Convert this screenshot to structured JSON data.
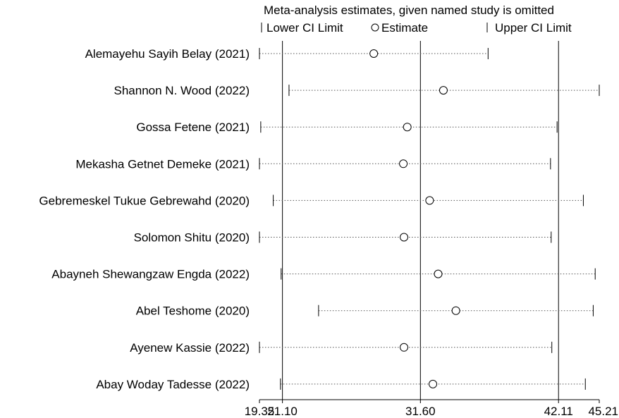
{
  "chart_data": {
    "type": "scatter",
    "title": "Meta-analysis estimates, given named study is omitted",
    "legend": {
      "placement": "top",
      "entries": [
        {
          "symbol": "|",
          "label": "Lower CI Limit"
        },
        {
          "symbol": "○",
          "label": "Estimate"
        },
        {
          "symbol": "|",
          "label": "Upper CI Limit"
        }
      ]
    },
    "x_ticks": [
      19.35,
      21.1,
      31.6,
      42.11,
      45.21
    ],
    "x_tick_labels": [
      "19.35",
      "21.10",
      "31.60",
      "42.11",
      "45.21"
    ],
    "reference_lines": [
      21.1,
      31.6,
      42.11
    ],
    "xlim": [
      19.35,
      45.21
    ],
    "grid": false,
    "studies": [
      {
        "name": "Alemayehu Sayih Belay (2021)",
        "lower": 19.35,
        "estimate": 28.05,
        "upper": 36.75
      },
      {
        "name": "Shannon N. Wood (2022)",
        "lower": 21.6,
        "estimate": 33.35,
        "upper": 45.21
      },
      {
        "name": "Gossa Fetene (2021)",
        "lower": 19.45,
        "estimate": 30.6,
        "upper": 42.0
      },
      {
        "name": "Mekasha Getnet Demeke (2021)",
        "lower": 19.35,
        "estimate": 30.3,
        "upper": 41.5
      },
      {
        "name": "Gebremeskel Tukue Gebrewahd (2020)",
        "lower": 20.4,
        "estimate": 32.3,
        "upper": 44.0
      },
      {
        "name": "Solomon Shitu (2020)",
        "lower": 19.35,
        "estimate": 30.35,
        "upper": 41.55
      },
      {
        "name": "Abayneh Shewangzaw Engda (2022)",
        "lower": 21.0,
        "estimate": 32.95,
        "upper": 44.9
      },
      {
        "name": "Abel Teshome (2020)",
        "lower": 23.85,
        "estimate": 34.3,
        "upper": 44.75
      },
      {
        "name": "Ayenew Kassie (2022)",
        "lower": 19.35,
        "estimate": 30.35,
        "upper": 41.6
      },
      {
        "name": "Abay Woday Tadesse (2022)",
        "lower": 20.95,
        "estimate": 32.55,
        "upper": 44.15
      }
    ]
  }
}
